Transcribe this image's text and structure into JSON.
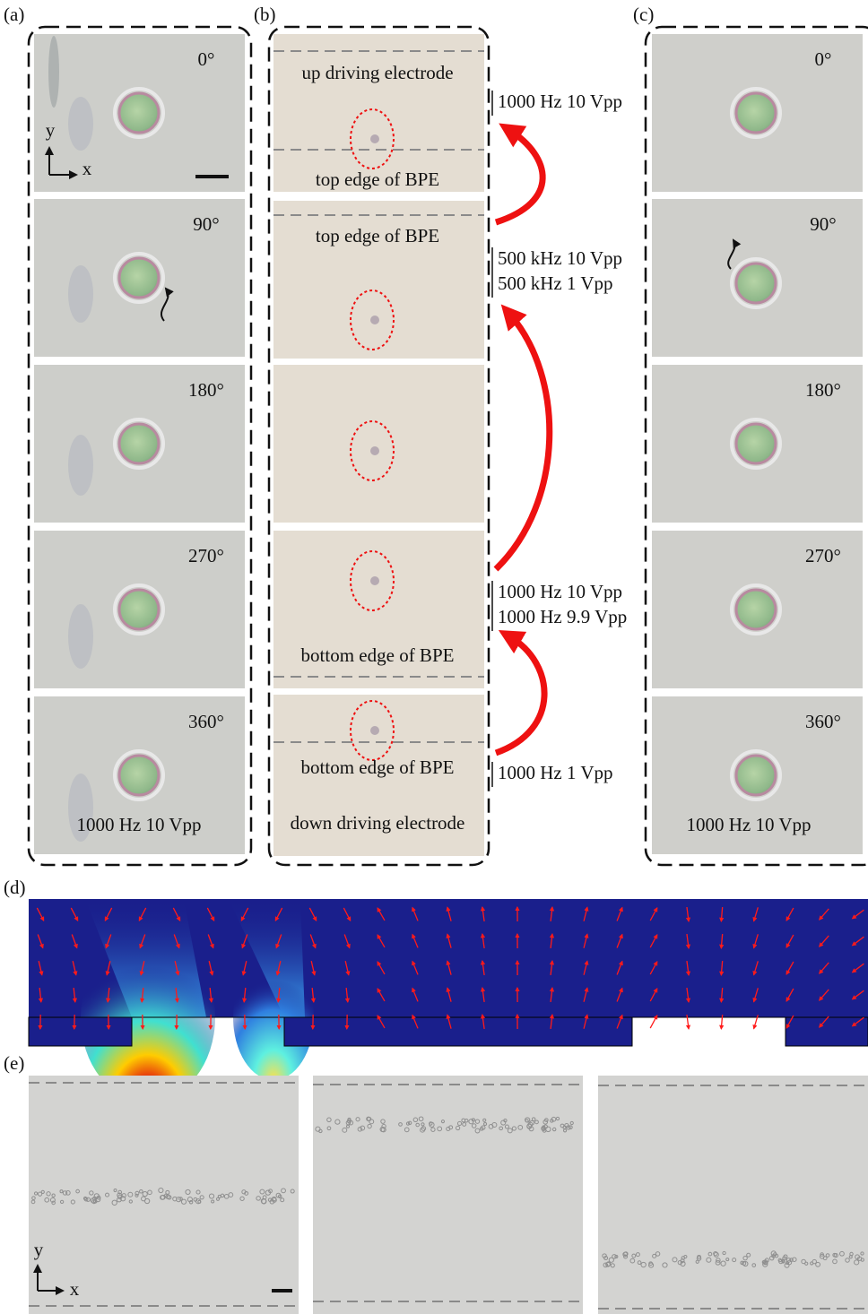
{
  "panels": {
    "a": {
      "label": "(a)",
      "angles": [
        "0°",
        "90°",
        "180°",
        "270°",
        "360°"
      ],
      "axis": {
        "y": "y",
        "x": "x"
      },
      "caption": "1000 Hz 10 Vpp"
    },
    "b": {
      "label": "(b)",
      "frame_labels": [
        "up driving electrode",
        "top edge of BPE",
        "top edge of BPE",
        "bottom edge of BPE",
        "bottom edge of BPE",
        "down driving electrode"
      ],
      "conditions": [
        "1000 Hz 10 Vpp",
        "500 kHz 10 Vpp",
        "500 kHz 1 Vpp",
        "1000 Hz 10 Vpp",
        "1000 Hz 9.9 Vpp",
        "1000 Hz 1 Vpp"
      ]
    },
    "c": {
      "label": "(c)",
      "angles": [
        "0°",
        "90°",
        "180°",
        "270°",
        "360°"
      ],
      "caption": "1000 Hz 10 Vpp"
    },
    "d": {
      "label": "(d)"
    },
    "e": {
      "label": "(e)",
      "axis": {
        "y": "y",
        "x": "x"
      }
    }
  }
}
